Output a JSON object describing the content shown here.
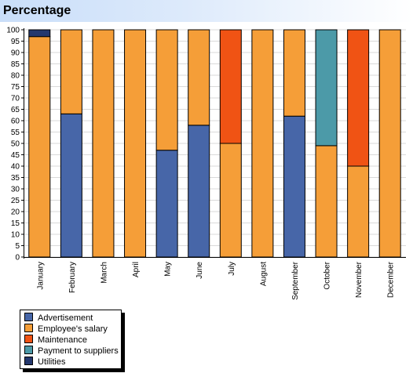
{
  "header": {
    "title": "Percentage"
  },
  "chart_data": {
    "type": "bar",
    "stacked": true,
    "title": "Percentage",
    "xlabel": "",
    "ylabel": "",
    "ylim": [
      0,
      100
    ],
    "y_ticks": [
      0,
      5,
      10,
      15,
      20,
      25,
      30,
      35,
      40,
      45,
      50,
      55,
      60,
      65,
      70,
      75,
      80,
      85,
      90,
      95,
      100
    ],
    "grid": true,
    "legend_position": "bottom-left",
    "categories": [
      "January",
      "February",
      "March",
      "April",
      "May",
      "June",
      "July",
      "August",
      "September",
      "October",
      "November",
      "December"
    ],
    "series": [
      {
        "name": "Advertisement",
        "color": "#4766a8",
        "values": [
          0,
          63,
          0,
          0,
          47,
          58,
          0,
          0,
          62,
          0,
          0,
          0
        ]
      },
      {
        "name": "Employee's salary",
        "color": "#f59e38",
        "values": [
          97,
          37,
          100,
          100,
          53,
          42,
          50,
          100,
          38,
          49,
          40,
          100
        ]
      },
      {
        "name": "Maintenance",
        "color": "#f05314",
        "values": [
          0,
          0,
          0,
          0,
          0,
          0,
          50,
          0,
          0,
          0,
          60,
          0
        ]
      },
      {
        "name": "Payment to suppliers",
        "color": "#4c9aa8",
        "values": [
          0,
          0,
          0,
          0,
          0,
          0,
          0,
          0,
          0,
          51,
          0,
          0
        ]
      },
      {
        "name": "Utilities",
        "color": "#24386e",
        "values": [
          3,
          0,
          0,
          0,
          0,
          0,
          0,
          0,
          0,
          0,
          0,
          0
        ]
      }
    ]
  }
}
